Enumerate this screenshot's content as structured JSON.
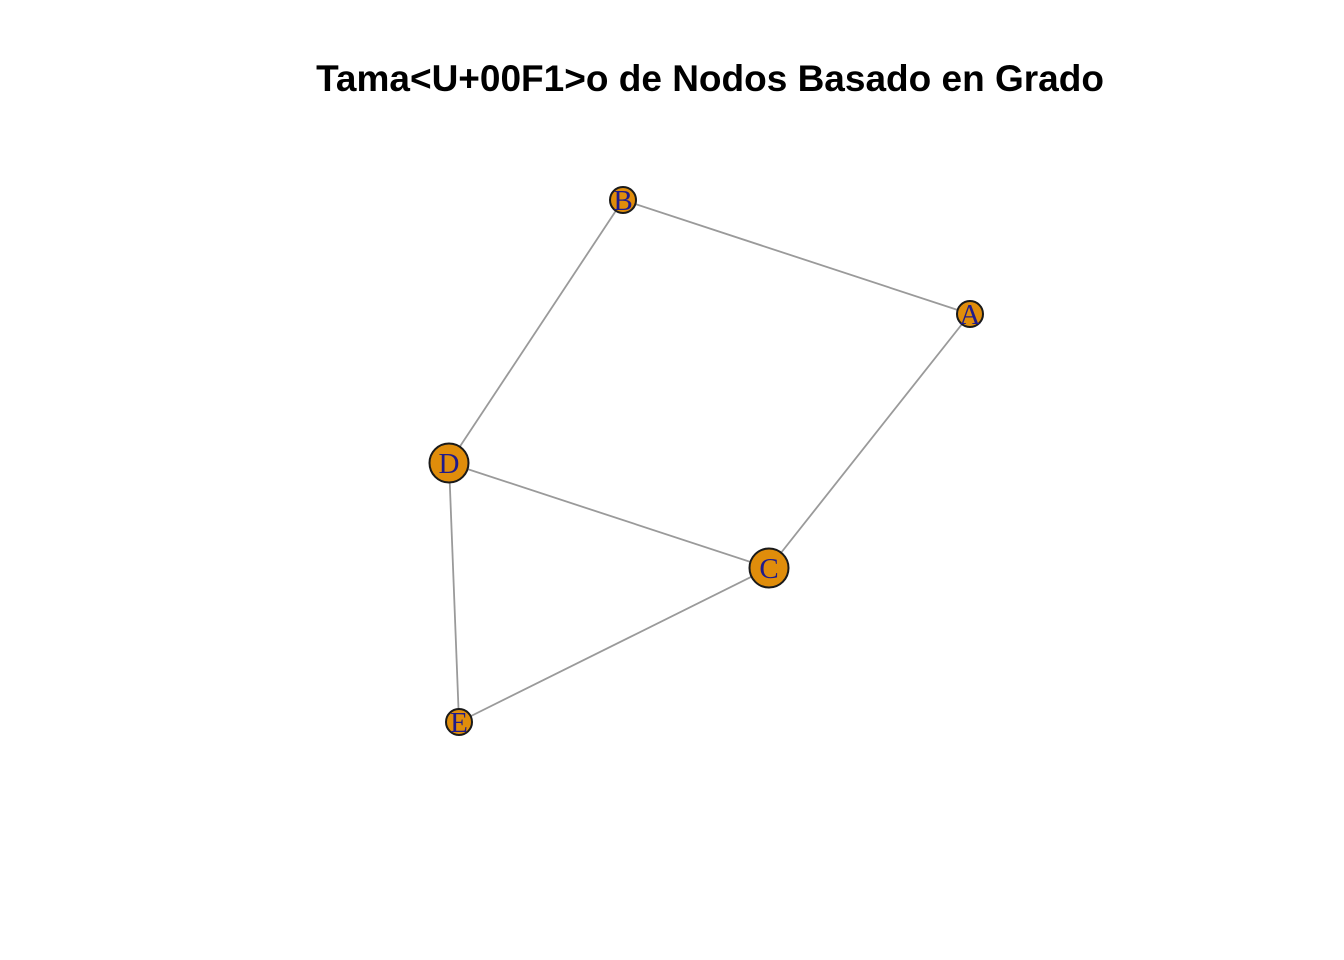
{
  "title": "Tama<U+00F1>o de Nodos Basado en Grado",
  "colors": {
    "node_fill": "#E08D0B",
    "node_stroke": "#1a1a1a",
    "label": "#1F1B8C",
    "edge": "#9a9a9a"
  },
  "nodes": [
    {
      "id": "A",
      "label": "A",
      "degree": 2
    },
    {
      "id": "B",
      "label": "B",
      "degree": 2
    },
    {
      "id": "C",
      "label": "C",
      "degree": 3
    },
    {
      "id": "D",
      "label": "D",
      "degree": 3
    },
    {
      "id": "E",
      "label": "E",
      "degree": 2
    }
  ],
  "edges": [
    {
      "from": "A",
      "to": "B"
    },
    {
      "from": "A",
      "to": "C"
    },
    {
      "from": "B",
      "to": "D"
    },
    {
      "from": "C",
      "to": "D"
    },
    {
      "from": "C",
      "to": "E"
    },
    {
      "from": "D",
      "to": "E"
    }
  ]
}
